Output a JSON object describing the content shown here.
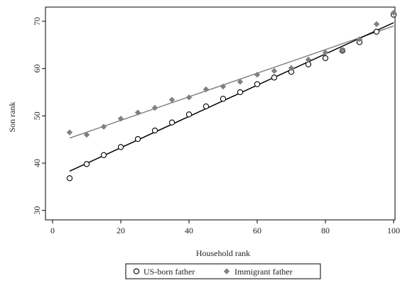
{
  "chart_data": {
    "type": "scatter",
    "title": "",
    "xlabel": "Household rank",
    "ylabel": "Son rank",
    "xlim": [
      0,
      100
    ],
    "ylim": [
      28,
      73
    ],
    "xticks": [
      0,
      20,
      40,
      60,
      80,
      100
    ],
    "yticks": [
      30,
      40,
      50,
      60,
      70
    ],
    "grid": false,
    "legend_position": "bottom",
    "series": [
      {
        "name": "US-born father",
        "marker": "hollow-circle",
        "color": "#000000",
        "x": [
          5,
          10,
          15,
          20,
          25,
          30,
          35,
          40,
          45,
          50,
          55,
          60,
          65,
          70,
          75,
          80,
          85,
          90,
          95,
          100
        ],
        "values": [
          36.8,
          39.8,
          41.7,
          43.4,
          45.1,
          46.9,
          48.6,
          50.3,
          52.0,
          53.6,
          55.0,
          56.7,
          58.1,
          59.3,
          60.9,
          62.2,
          63.8,
          65.6,
          67.8,
          71.4
        ],
        "fit": {
          "x": [
            5,
            100
          ],
          "y": [
            38.3,
            69.7
          ]
        }
      },
      {
        "name": "Immigrant father",
        "marker": "diamond",
        "color": "#808080",
        "x": [
          5,
          10,
          15,
          20,
          25,
          30,
          35,
          40,
          45,
          50,
          55,
          60,
          65,
          70,
          75,
          80,
          85,
          90,
          95,
          100
        ],
        "values": [
          46.5,
          46.0,
          47.7,
          49.4,
          50.7,
          51.7,
          53.4,
          53.9,
          55.6,
          56.2,
          57.2,
          58.7,
          59.5,
          60.1,
          61.9,
          63.4,
          63.9,
          66.2,
          69.4,
          71.8
        ],
        "fit": {
          "x": [
            5,
            100
          ],
          "y": [
            45.3,
            69.0
          ]
        }
      }
    ]
  }
}
